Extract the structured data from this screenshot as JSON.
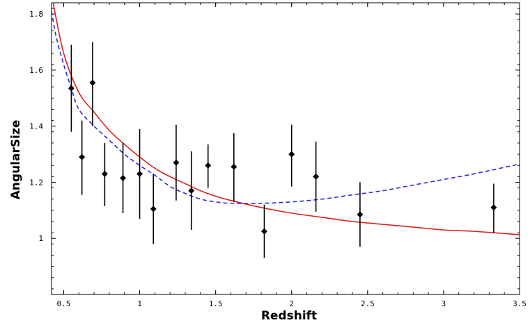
{
  "chart_data": {
    "type": "scatter",
    "title": "",
    "xlabel": "Redshift",
    "ylabel": "AngularSize",
    "xlim": [
      0.42,
      3.5
    ],
    "ylim": [
      0.8,
      1.84
    ],
    "grid": false,
    "x_ticks": [
      0.5,
      1,
      1.5,
      2,
      2.5,
      3,
      3.5
    ],
    "x_tick_labels": [
      "0.5",
      "1",
      "1.5",
      "2",
      "2.5",
      "3",
      "3.5"
    ],
    "y_ticks": [
      1.0,
      1.2,
      1.4,
      1.6,
      1.8
    ],
    "y_tick_labels": [
      "1",
      "1.2",
      "1.4",
      "1.6",
      "1.8"
    ],
    "series": [
      {
        "kind": "points_with_error_bars",
        "color": "#000000",
        "marker": "diamond",
        "points": [
          {
            "x": 0.55,
            "y": 1.535,
            "ylow": 1.38,
            "yhigh": 1.69
          },
          {
            "x": 0.62,
            "y": 1.29,
            "ylow": 1.155,
            "yhigh": 1.42
          },
          {
            "x": 0.69,
            "y": 1.555,
            "ylow": 1.4,
            "yhigh": 1.7
          },
          {
            "x": 0.77,
            "y": 1.23,
            "ylow": 1.115,
            "yhigh": 1.34
          },
          {
            "x": 0.89,
            "y": 1.215,
            "ylow": 1.09,
            "yhigh": 1.34
          },
          {
            "x": 1.0,
            "y": 1.23,
            "ylow": 1.07,
            "yhigh": 1.39
          },
          {
            "x": 1.09,
            "y": 1.105,
            "ylow": 0.98,
            "yhigh": 1.23
          },
          {
            "x": 1.24,
            "y": 1.27,
            "ylow": 1.135,
            "yhigh": 1.405
          },
          {
            "x": 1.34,
            "y": 1.17,
            "ylow": 1.03,
            "yhigh": 1.31
          },
          {
            "x": 1.45,
            "y": 1.26,
            "ylow": 1.18,
            "yhigh": 1.335
          },
          {
            "x": 1.62,
            "y": 1.255,
            "ylow": 1.13,
            "yhigh": 1.375
          },
          {
            "x": 1.82,
            "y": 1.025,
            "ylow": 0.93,
            "yhigh": 1.12
          },
          {
            "x": 2.0,
            "y": 1.3,
            "ylow": 1.185,
            "yhigh": 1.405
          },
          {
            "x": 2.16,
            "y": 1.22,
            "ylow": 1.095,
            "yhigh": 1.345
          },
          {
            "x": 2.45,
            "y": 1.085,
            "ylow": 0.97,
            "yhigh": 1.2
          },
          {
            "x": 3.33,
            "y": 1.11,
            "ylow": 1.02,
            "yhigh": 1.195
          }
        ]
      },
      {
        "kind": "line",
        "color": "#dd1f1f",
        "style": "solid",
        "points": [
          [
            0.42,
            1.87
          ],
          [
            0.5,
            1.66
          ],
          [
            0.6,
            1.52
          ],
          [
            0.7,
            1.45
          ],
          [
            0.8,
            1.385
          ],
          [
            0.9,
            1.335
          ],
          [
            1.0,
            1.29
          ],
          [
            1.1,
            1.25
          ],
          [
            1.2,
            1.22
          ],
          [
            1.3,
            1.195
          ],
          [
            1.4,
            1.17
          ],
          [
            1.5,
            1.15
          ],
          [
            1.6,
            1.135
          ],
          [
            1.8,
            1.11
          ],
          [
            2.0,
            1.09
          ],
          [
            2.2,
            1.075
          ],
          [
            2.4,
            1.06
          ],
          [
            2.6,
            1.05
          ],
          [
            2.8,
            1.04
          ],
          [
            3.0,
            1.03
          ],
          [
            3.2,
            1.025
          ],
          [
            3.5,
            1.013
          ]
        ]
      },
      {
        "kind": "line",
        "color": "#2a2ad6",
        "style": "dashed",
        "points": [
          [
            0.42,
            1.81
          ],
          [
            0.45,
            1.72
          ],
          [
            0.5,
            1.62
          ],
          [
            0.55,
            1.535
          ],
          [
            0.6,
            1.46
          ],
          [
            0.7,
            1.4
          ],
          [
            0.8,
            1.35
          ],
          [
            0.9,
            1.3
          ],
          [
            1.0,
            1.26
          ],
          [
            1.1,
            1.225
          ],
          [
            1.2,
            1.185
          ],
          [
            1.3,
            1.16
          ],
          [
            1.4,
            1.14
          ],
          [
            1.5,
            1.13
          ],
          [
            1.6,
            1.125
          ],
          [
            1.8,
            1.125
          ],
          [
            2.0,
            1.13
          ],
          [
            2.2,
            1.14
          ],
          [
            2.4,
            1.155
          ],
          [
            2.6,
            1.17
          ],
          [
            2.8,
            1.19
          ],
          [
            3.0,
            1.21
          ],
          [
            3.2,
            1.23
          ],
          [
            3.5,
            1.265
          ]
        ]
      }
    ]
  }
}
